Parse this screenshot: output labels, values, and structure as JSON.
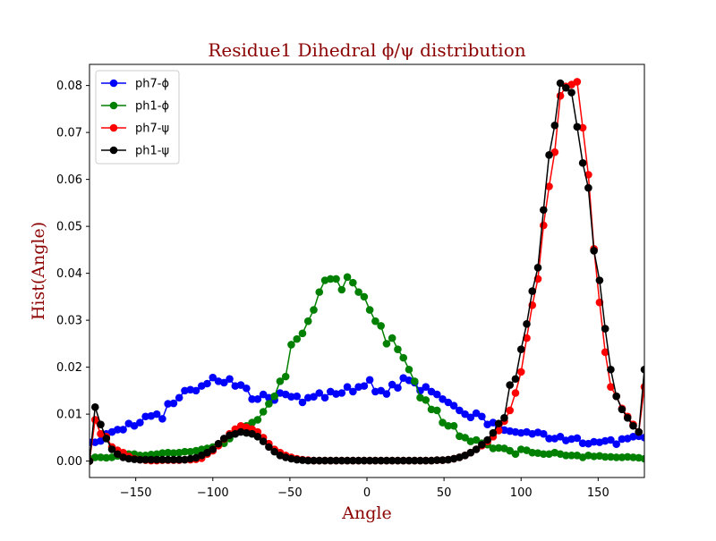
{
  "chart_data": {
    "type": "line",
    "title": "Residue1 Dihedral ϕ/ψ distribution",
    "xlabel": "Angle",
    "ylabel": "Hist(Angle)",
    "xlim": [
      -180,
      180
    ],
    "ylim": [
      -0.0035,
      0.0845
    ],
    "xticks": [
      -150,
      -100,
      -50,
      0,
      50,
      100,
      150
    ],
    "yticks": [
      0.0,
      0.01,
      0.02,
      0.03,
      0.04,
      0.05,
      0.06,
      0.07,
      0.08
    ],
    "ytick_labels": [
      "0.00",
      "0.01",
      "0.02",
      "0.03",
      "0.04",
      "0.05",
      "0.06",
      "0.07",
      "0.08"
    ],
    "xtick_labels": [
      "−150",
      "−100",
      "−50",
      "0",
      "50",
      "100",
      "150"
    ],
    "grid": false,
    "legend_position": "top-left",
    "title_color": "#8b0000",
    "label_color": "#8b0000",
    "x": [
      -180,
      -176.36,
      -172.73,
      -169.09,
      -165.45,
      -161.82,
      -158.18,
      -154.55,
      -150.91,
      -147.27,
      -143.64,
      -140,
      -136.36,
      -132.73,
      -129.09,
      -125.45,
      -121.82,
      -118.18,
      -114.55,
      -110.91,
      -107.27,
      -103.64,
      -100,
      -96.36,
      -92.73,
      -89.09,
      -85.45,
      -81.82,
      -78.18,
      -74.55,
      -70.91,
      -67.27,
      -63.64,
      -60,
      -56.36,
      -52.73,
      -49.09,
      -45.45,
      -41.82,
      -38.18,
      -34.55,
      -30.91,
      -27.27,
      -23.64,
      -20,
      -16.36,
      -12.73,
      -9.09,
      -5.45,
      -1.82,
      1.82,
      5.45,
      9.09,
      12.73,
      16.36,
      20,
      23.64,
      27.27,
      30.91,
      34.55,
      38.18,
      41.82,
      45.45,
      49.09,
      52.73,
      56.36,
      60,
      63.64,
      67.27,
      70.91,
      74.55,
      78.18,
      81.82,
      85.45,
      89.09,
      92.73,
      96.36,
      100,
      103.64,
      107.27,
      110.91,
      114.55,
      118.18,
      121.82,
      125.45,
      129.09,
      132.73,
      136.36,
      140,
      143.64,
      147.27,
      150.91,
      154.55,
      158.18,
      161.82,
      165.45,
      169.09,
      172.73,
      176.36,
      180
    ],
    "series": [
      {
        "name": "ph7-ϕ",
        "color": "#0000ff",
        "values": [
          0.004,
          0.004,
          0.0043,
          0.0058,
          0.0062,
          0.0067,
          0.0067,
          0.008,
          0.0075,
          0.0082,
          0.0095,
          0.0096,
          0.01,
          0.009,
          0.0122,
          0.0123,
          0.0135,
          0.015,
          0.0152,
          0.015,
          0.016,
          0.0165,
          0.0178,
          0.017,
          0.0167,
          0.0175,
          0.016,
          0.0162,
          0.0155,
          0.0132,
          0.0132,
          0.0142,
          0.0135,
          0.013,
          0.0145,
          0.0142,
          0.0137,
          0.0138,
          0.0125,
          0.0135,
          0.0137,
          0.0145,
          0.0135,
          0.0148,
          0.0143,
          0.0145,
          0.0158,
          0.0148,
          0.0158,
          0.016,
          0.0173,
          0.0148,
          0.015,
          0.0143,
          0.0163,
          0.0156,
          0.0177,
          0.0172,
          0.0167,
          0.015,
          0.0158,
          0.0148,
          0.0142,
          0.0132,
          0.0125,
          0.0118,
          0.0108,
          0.01,
          0.0093,
          0.0102,
          0.0095,
          0.0078,
          0.0082,
          0.0072,
          0.0066,
          0.0064,
          0.0062,
          0.006,
          0.0062,
          0.0058,
          0.0061,
          0.0058,
          0.0048,
          0.0048,
          0.0052,
          0.0044,
          0.0047,
          0.0049,
          0.0038,
          0.0037,
          0.0041,
          0.004,
          0.0043,
          0.0045,
          0.0036,
          0.0047,
          0.0048,
          0.0052,
          0.0053,
          0.005
        ]
      },
      {
        "name": "ph1-ϕ",
        "color": "#008000",
        "values": [
          0.0005,
          0.0008,
          0.0008,
          0.0007,
          0.0008,
          0.0011,
          0.0013,
          0.0015,
          0.0015,
          0.0012,
          0.0012,
          0.0014,
          0.0015,
          0.0017,
          0.0018,
          0.0017,
          0.0018,
          0.002,
          0.002,
          0.0022,
          0.0025,
          0.0027,
          0.003,
          0.0035,
          0.0038,
          0.0048,
          0.0058,
          0.0065,
          0.0075,
          0.0082,
          0.0088,
          0.0105,
          0.0122,
          0.0138,
          0.017,
          0.018,
          0.0248,
          0.026,
          0.0272,
          0.0298,
          0.0322,
          0.036,
          0.0385,
          0.0388,
          0.0388,
          0.0365,
          0.0392,
          0.038,
          0.036,
          0.035,
          0.0322,
          0.0298,
          0.0288,
          0.025,
          0.0262,
          0.0238,
          0.022,
          0.0195,
          0.017,
          0.0135,
          0.013,
          0.011,
          0.0108,
          0.0082,
          0.0075,
          0.0075,
          0.0053,
          0.005,
          0.0042,
          0.0045,
          0.0038,
          0.0035,
          0.0027,
          0.0028,
          0.0027,
          0.0022,
          0.0015,
          0.0025,
          0.0023,
          0.0018,
          0.0017,
          0.0015,
          0.0015,
          0.0018,
          0.0015,
          0.0012,
          0.0012,
          0.0012,
          0.0008,
          0.0012,
          0.001,
          0.0011,
          0.0009,
          0.0009,
          0.0008,
          0.0008,
          0.0009,
          0.0008,
          0.0007,
          0.0005
        ]
      },
      {
        "name": "ph7-ψ",
        "color": "#ff0000",
        "values": [
          0.0,
          0.0088,
          0.0058,
          0.0052,
          0.003,
          0.0023,
          0.0018,
          0.001,
          0.0005,
          0.0003,
          0.0002,
          0.0001,
          0.0001,
          0.0002,
          0.0002,
          0.0002,
          0.0002,
          0.0003,
          0.0003,
          0.0004,
          0.0006,
          0.0015,
          0.0022,
          0.0033,
          0.0047,
          0.0058,
          0.0068,
          0.0075,
          0.0072,
          0.0068,
          0.0062,
          0.005,
          0.0037,
          0.0025,
          0.0018,
          0.0012,
          0.0008,
          0.0005,
          0.0003,
          0.0002,
          0.0001,
          0.0001,
          0.0001,
          0.0001,
          0.0001,
          0.0001,
          0.0001,
          0.0001,
          0.0001,
          0.0001,
          0.0001,
          0.0001,
          0.0001,
          0.0001,
          0.0001,
          0.0001,
          0.0001,
          0.0001,
          0.0001,
          0.0001,
          0.0001,
          0.0001,
          0.0002,
          0.0002,
          0.0003,
          0.0005,
          0.0008,
          0.0012,
          0.0018,
          0.0025,
          0.0033,
          0.0042,
          0.0052,
          0.0065,
          0.0085,
          0.0108,
          0.0145,
          0.019,
          0.0262,
          0.0332,
          0.0388,
          0.0502,
          0.0585,
          0.0658,
          0.0778,
          0.0798,
          0.0802,
          0.0808,
          0.071,
          0.061,
          0.0452,
          0.0338,
          0.0232,
          0.0158,
          0.0138,
          0.0112,
          0.0095,
          0.0078,
          0.0062,
          0.0158
        ]
      },
      {
        "name": "ph1-ψ",
        "color": "#000000",
        "values": [
          0.0,
          0.0115,
          0.0078,
          0.0048,
          0.0025,
          0.0015,
          0.0008,
          0.0005,
          0.0004,
          0.0003,
          0.0003,
          0.0003,
          0.0003,
          0.0003,
          0.0003,
          0.0003,
          0.0003,
          0.0003,
          0.0005,
          0.0007,
          0.0012,
          0.0018,
          0.0025,
          0.0037,
          0.0048,
          0.0055,
          0.0058,
          0.0062,
          0.006,
          0.0058,
          0.0052,
          0.0042,
          0.003,
          0.002,
          0.0012,
          0.0008,
          0.0005,
          0.0003,
          0.0002,
          0.0001,
          0.0001,
          0.0001,
          0.0001,
          0.0001,
          0.0001,
          0.0001,
          0.0001,
          0.0001,
          0.0001,
          0.0001,
          0.0001,
          0.0001,
          0.0001,
          0.0001,
          0.0001,
          0.0001,
          0.0001,
          0.0001,
          0.0001,
          0.0001,
          0.0001,
          0.0001,
          0.0002,
          0.0002,
          0.0003,
          0.0005,
          0.0008,
          0.0012,
          0.0018,
          0.0025,
          0.0035,
          0.0045,
          0.006,
          0.008,
          0.0092,
          0.0162,
          0.0175,
          0.0238,
          0.0292,
          0.0362,
          0.0412,
          0.0535,
          0.0652,
          0.0715,
          0.0805,
          0.0795,
          0.0785,
          0.0712,
          0.0635,
          0.0582,
          0.0448,
          0.0385,
          0.0282,
          0.0195,
          0.0138,
          0.011,
          0.0092,
          0.0075,
          0.0062,
          0.0195
        ]
      }
    ]
  }
}
